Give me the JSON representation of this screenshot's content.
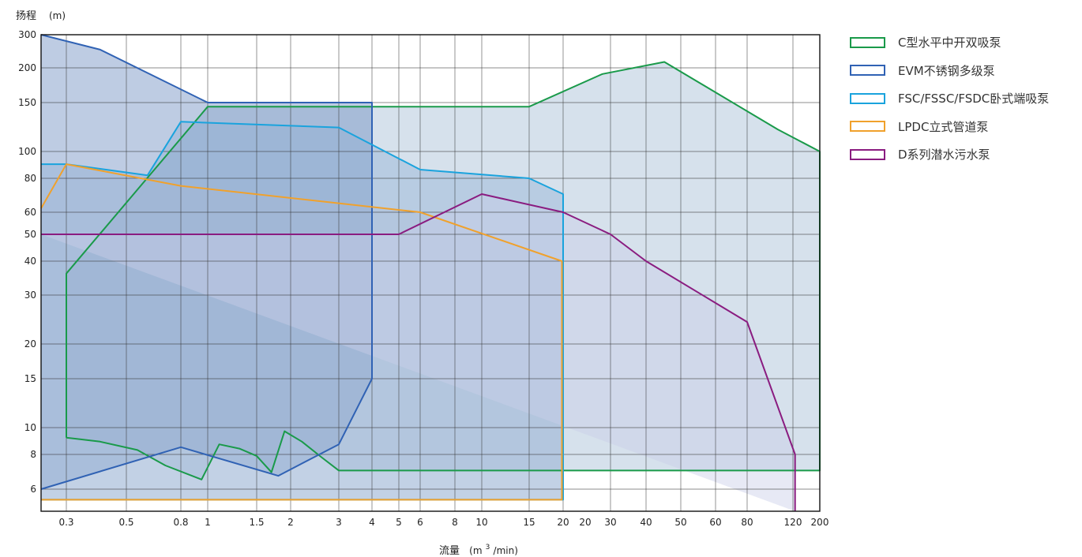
{
  "chart_data": {
    "type": "area",
    "y_title": "扬程",
    "y_unit": "(m)",
    "x_title": "流量",
    "x_unit_pre": "(m",
    "x_unit_sup": "3",
    "x_unit_post": " /min)",
    "x_scale": "log",
    "y_scale": "log",
    "xlim": [
      0.25,
      200
    ],
    "ylim": [
      5,
      300
    ],
    "grid": true,
    "legend_position": "right",
    "x_ticks": [
      {
        "v": 0.3,
        "label": "0.3"
      },
      {
        "v": 0.5,
        "label": "0.5"
      },
      {
        "v": 0.8,
        "label": "0.8"
      },
      {
        "v": 1,
        "label": "1"
      },
      {
        "v": 1.5,
        "label": "1.5"
      },
      {
        "v": 2,
        "label": "2"
      },
      {
        "v": 3,
        "label": "3"
      },
      {
        "v": 4,
        "label": "4"
      },
      {
        "v": 5,
        "label": "5"
      },
      {
        "v": 6,
        "label": "6"
      },
      {
        "v": 8,
        "label": "8"
      },
      {
        "v": 10,
        "label": "10"
      },
      {
        "v": 15,
        "label": "15"
      },
      {
        "v": 20,
        "label": "20"
      },
      {
        "v": 30,
        "label": "30"
      },
      {
        "v": 40,
        "label": "40"
      },
      {
        "v": 50,
        "label": "50"
      },
      {
        "v": 60,
        "label": "60"
      },
      {
        "v": 80,
        "label": "80"
      },
      {
        "v": 120,
        "label": "120"
      },
      {
        "v": 200,
        "label": "200"
      }
    ],
    "x_second_20_label": "20",
    "y_ticks": [
      {
        "v": 6,
        "label": "6"
      },
      {
        "v": 8,
        "label": "8"
      },
      {
        "v": 10,
        "label": "10"
      },
      {
        "v": 15,
        "label": "15"
      },
      {
        "v": 20,
        "label": "20"
      },
      {
        "v": 30,
        "label": "30"
      },
      {
        "v": 40,
        "label": "40"
      },
      {
        "v": 50,
        "label": "50"
      },
      {
        "v": 60,
        "label": "60"
      },
      {
        "v": 80,
        "label": "80"
      },
      {
        "v": 100,
        "label": "100"
      },
      {
        "v": 150,
        "label": "150"
      },
      {
        "v": 200,
        "label": "200"
      },
      {
        "v": 300,
        "label": "300"
      }
    ],
    "series": [
      {
        "name": "C型水平中开双吸泵",
        "color": "#1a9a4a",
        "fill": "#b4c8dd",
        "fill_opacity": 0.55,
        "points": [
          [
            0.3,
            9.2
          ],
          [
            0.33,
            9.1
          ],
          [
            0.4,
            8.9
          ],
          [
            0.55,
            8.3
          ],
          [
            0.7,
            7.3
          ],
          [
            0.95,
            6.5
          ],
          [
            1.1,
            8.7
          ],
          [
            1.3,
            8.4
          ],
          [
            1.5,
            7.9
          ],
          [
            1.7,
            6.9
          ],
          [
            1.9,
            9.7
          ],
          [
            2.2,
            8.9
          ],
          [
            2.6,
            7.8
          ],
          [
            3,
            7
          ],
          [
            15,
            7
          ],
          [
            200,
            7
          ],
          [
            200,
            100
          ],
          [
            105,
            120
          ],
          [
            45,
            215
          ],
          [
            28,
            190
          ],
          [
            15,
            145
          ],
          [
            1,
            145
          ],
          [
            0.3,
            36
          ],
          [
            0.3,
            9.2
          ]
        ]
      },
      {
        "name": "EVM不锈钢多级泵",
        "color": "#3062b4",
        "fill": "#6f8fc0",
        "fill_opacity": 0.45,
        "points": [
          [
            0.25,
            300
          ],
          [
            0.4,
            250
          ],
          [
            1,
            150
          ],
          [
            4,
            150
          ],
          [
            4,
            15
          ],
          [
            3,
            8.7
          ],
          [
            1.8,
            6.7
          ],
          [
            0.8,
            8.5
          ],
          [
            0.25,
            6
          ]
        ]
      },
      {
        "name": "FSC/FSSC/FSDC卧式端吸泵",
        "color": "#1aa3dd",
        "fill": "#8fb1d3",
        "fill_opacity": 0.42,
        "points": [
          [
            0.25,
            5.5
          ],
          [
            20,
            5.5
          ],
          [
            20,
            70
          ],
          [
            15,
            80
          ],
          [
            6,
            86
          ],
          [
            3,
            122
          ],
          [
            0.8,
            128
          ],
          [
            0.6,
            82
          ],
          [
            0.3,
            90
          ],
          [
            0.25,
            90
          ]
        ]
      },
      {
        "name": "LPDC立式管道泵",
        "color": "#f0a12c",
        "fill": "#a8b9d6",
        "fill_opacity": 0.35,
        "points": [
          [
            0.25,
            5.5
          ],
          [
            19.8,
            5.5
          ],
          [
            19.8,
            40
          ],
          [
            6,
            60
          ],
          [
            0.8,
            75
          ],
          [
            0.3,
            90
          ],
          [
            0.25,
            62
          ]
        ]
      },
      {
        "name": "D系列潜水污水泵",
        "color": "#8a1c80",
        "fill": "#c9cee8",
        "fill_opacity": 0.45,
        "points": [
          [
            0.25,
            50
          ],
          [
            5,
            50
          ],
          [
            10,
            70
          ],
          [
            20,
            60
          ],
          [
            30,
            50
          ],
          [
            40,
            40
          ],
          [
            80,
            24
          ],
          [
            125,
            8
          ],
          [
            125,
            5
          ]
        ]
      }
    ]
  }
}
